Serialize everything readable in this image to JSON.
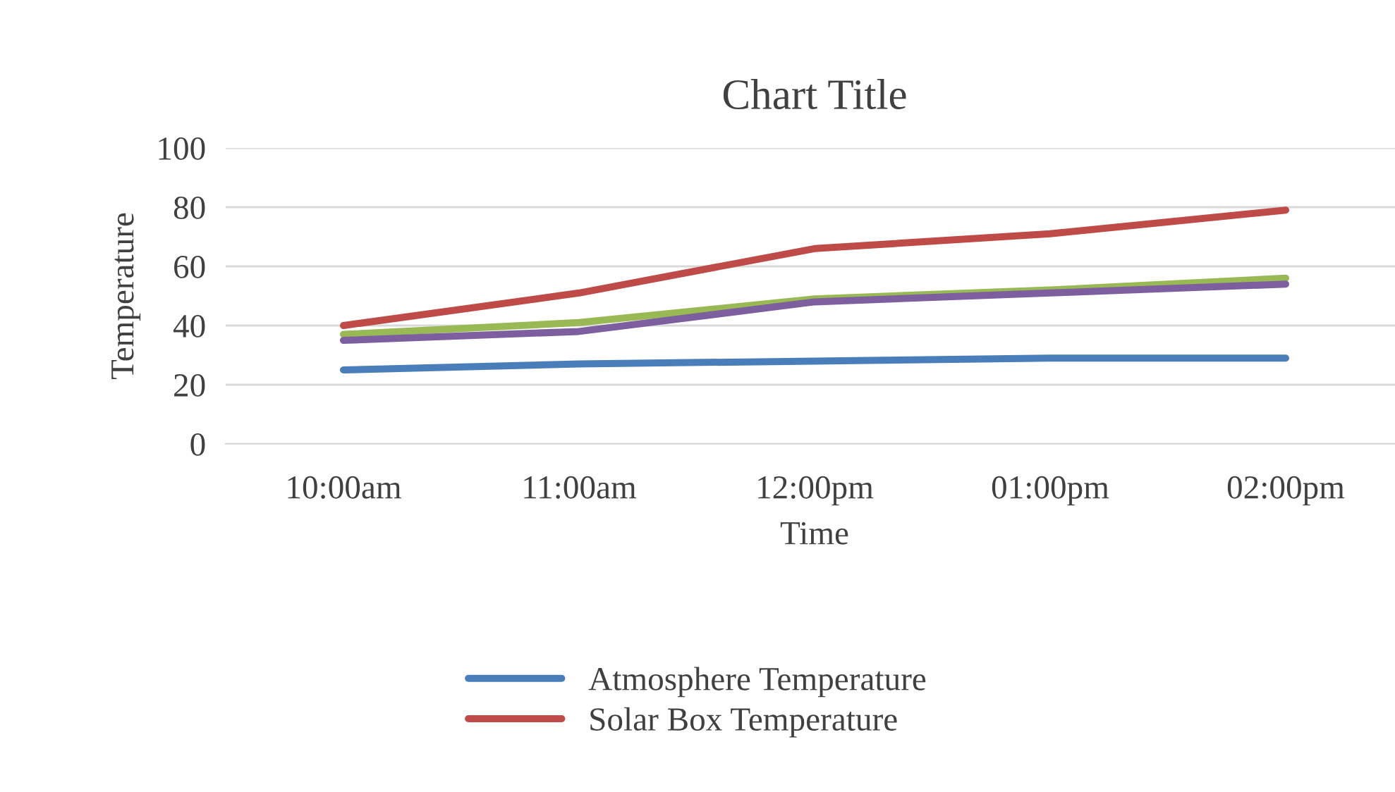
{
  "chart_data": {
    "type": "line",
    "title": "Chart Title",
    "xlabel": "Time",
    "ylabel": "Temperature",
    "categories": [
      "10:00am",
      "11:00am",
      "12:00pm",
      "01:00pm",
      "02:00pm"
    ],
    "series": [
      {
        "name": "Atmosphere Temperature",
        "color": "#4a7ebb",
        "values": [
          25,
          27,
          28,
          29,
          29
        ]
      },
      {
        "name": "Solar Box Temperature",
        "color": "#be4b48",
        "values": [
          40,
          51,
          66,
          71,
          79
        ]
      },
      {
        "color": "#98b954",
        "values": [
          37,
          41,
          49,
          52,
          56
        ]
      },
      {
        "color": "#7d5fa0",
        "values": [
          35,
          38,
          48,
          51,
          54
        ]
      }
    ],
    "ylim": [
      0,
      100
    ],
    "yticks": [
      0,
      20,
      40,
      60,
      80,
      100
    ],
    "grid": "y",
    "legend": "bottom",
    "marker": "none",
    "line_style": "solid"
  }
}
